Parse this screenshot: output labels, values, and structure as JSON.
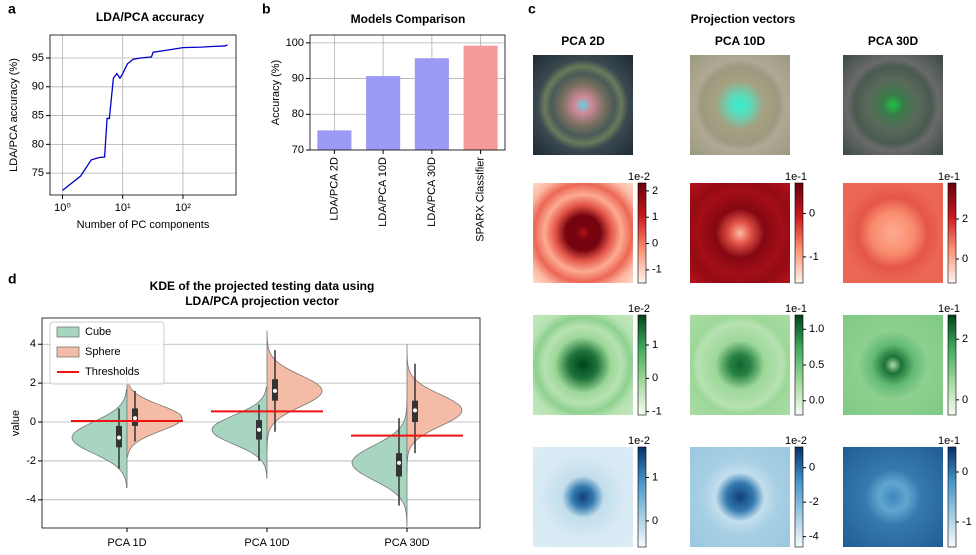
{
  "chart_data": [
    {
      "type": "line",
      "panel_label": "a",
      "title": "LDA/PCA accuracy",
      "x_label": "Number of PC components",
      "y_label": "LDA/PCA accuracy (%)",
      "x_scale": "log",
      "x": [
        1,
        2,
        3,
        4,
        5,
        5.5,
        6,
        7,
        8,
        9,
        10,
        12,
        15,
        20,
        30,
        32,
        50,
        100,
        200,
        300,
        500,
        550
      ],
      "values": [
        72,
        74.5,
        77.3,
        77.7,
        77.8,
        84.5,
        84.5,
        91.5,
        92.3,
        91.5,
        92.3,
        94,
        94.8,
        95,
        95.2,
        96,
        96.3,
        96.8,
        96.9,
        97,
        97.1,
        97.3
      ],
      "color": "#0000cc",
      "xlim": [
        0.62,
        760
      ],
      "ylim": [
        71.2,
        99
      ],
      "xticks": [
        {
          "value": 1,
          "label": "10⁰"
        },
        {
          "value": 10,
          "label": "10¹"
        },
        {
          "value": 100,
          "label": "10²"
        }
      ],
      "yticks": [
        75,
        80,
        85,
        90,
        95
      ],
      "grid": true
    },
    {
      "type": "bar",
      "panel_label": "b",
      "title": "Models Comparison",
      "y_label": "Accuracy (%)",
      "categories": [
        "LDA/PCA 2D",
        "LDA/PCA 10D",
        "LDA/PCA 30D",
        "SPARX Classifier"
      ],
      "values": [
        75.5,
        90.7,
        95.7,
        99.2
      ],
      "colors": [
        "#9b9bf5",
        "#9b9bf5",
        "#9b9bf5",
        "#f59b9b"
      ],
      "ylim": [
        70,
        102.2
      ],
      "yticks": [
        70,
        80,
        90,
        100
      ],
      "grid": true
    },
    {
      "type": "violin",
      "panel_label": "d",
      "title": [
        "KDE of the projected testing data using",
        "LDA/PCA projection vector"
      ],
      "y_label": "value",
      "categories": [
        "PCA 1D",
        "PCA 10D",
        "PCA 30D"
      ],
      "series": [
        {
          "name": "Cube",
          "color": "#a8d5c0",
          "boxes": [
            {
              "whislo": -2.4,
              "q1": -1.3,
              "med": -0.8,
              "q3": -0.2,
              "whishi": 0.7
            },
            {
              "whislo": -2.0,
              "q1": -0.9,
              "med": -0.4,
              "q3": 0.1,
              "whishi": 0.9
            },
            {
              "whislo": -4.3,
              "q1": -2.8,
              "med": -2.1,
              "q3": -1.6,
              "whishi": 0.2
            }
          ]
        },
        {
          "name": "Sphere",
          "color": "#f4bca6",
          "boxes": [
            {
              "whislo": -1.0,
              "q1": -0.2,
              "med": 0.2,
              "q3": 0.7,
              "whishi": 1.6
            },
            {
              "whislo": -0.5,
              "q1": 1.1,
              "med": 1.6,
              "q3": 2.2,
              "whishi": 3.7
            },
            {
              "whislo": -1.6,
              "q1": 0.0,
              "med": 0.6,
              "q3": 1.1,
              "whishi": 3.0
            }
          ]
        }
      ],
      "thresholds": {
        "name": "Thresholds",
        "color": "#ee1111",
        "values": [
          0.05,
          0.55,
          -0.7
        ]
      },
      "ylim": [
        -5.45,
        5.35
      ],
      "yticks": [
        -4,
        -2,
        0,
        2,
        4
      ],
      "grid": true
    }
  ],
  "projection_panel": {
    "panel_label": "c",
    "title": "Projection vectors",
    "columns": [
      "PCA 2D",
      "PCA 10D",
      "PCA 30D"
    ],
    "rows": [
      {
        "cmap": [
          "#fff5f0",
          "#fc9272",
          "#cb181d",
          "#67000d"
        ],
        "colorbars": [
          {
            "scale": "1e-2",
            "lim": [
              -1.5,
              2.3
            ],
            "ticks": [
              2,
              1,
              0,
              -1
            ]
          },
          {
            "scale": "1e-1",
            "lim": [
              -1.6,
              0.7
            ],
            "ticks": [
              0,
              -1
            ]
          },
          {
            "scale": "1e-1",
            "lim": [
              -1.2,
              3.8
            ],
            "ticks": [
              2,
              0
            ]
          }
        ]
      },
      {
        "cmap": [
          "#f7fcf5",
          "#a1d99b",
          "#41ab5d",
          "#00441b"
        ],
        "colorbars": [
          {
            "scale": "1e-2",
            "lim": [
              -1.1,
              1.9
            ],
            "ticks": [
              1,
              0,
              -1
            ]
          },
          {
            "scale": "1e-1",
            "lim": [
              -0.2,
              1.2
            ],
            "ticks": [
              {
                "value": 1,
                "label": "1.0"
              },
              0.5,
              {
                "value": 0,
                "label": "0.0"
              }
            ]
          },
          {
            "scale": "1e-1",
            "lim": [
              -0.5,
              2.8
            ],
            "ticks": [
              2,
              0
            ]
          }
        ]
      },
      {
        "cmap": [
          "#f7fbff",
          "#9ecae1",
          "#4292c6",
          "#08306b"
        ],
        "colorbars": [
          {
            "scale": "1e-2",
            "lim": [
              -0.6,
              1.7
            ],
            "ticks": [
              1,
              0
            ]
          },
          {
            "scale": "1e-2",
            "lim": [
              -4.6,
              1.2
            ],
            "ticks": [
              0,
              -2,
              -4
            ]
          },
          {
            "scale": "1e-1",
            "lim": [
              -1.5,
              0.5
            ],
            "ticks": [
              0,
              -1
            ]
          }
        ]
      }
    ]
  }
}
